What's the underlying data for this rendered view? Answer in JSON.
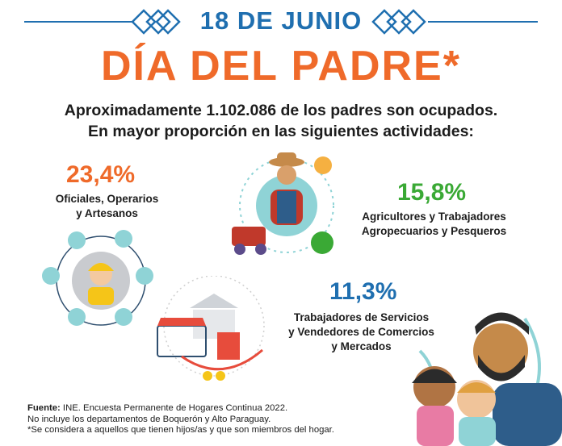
{
  "header": {
    "date": "18 DE JUNIO",
    "title": "DÍA DEL PADRE*",
    "intro_line1": "Aproximadamente 1.102.086 de los padres son ocupados.",
    "intro_line2": "En mayor proporción en las siguientes actividades:"
  },
  "stats": [
    {
      "percent": "23,4%",
      "label_line1": "Oficiales, Operarios",
      "label_line2": "y Artesanos",
      "color": "#ef6a2a"
    },
    {
      "percent": "15,8%",
      "label_line1": "Agricultores  y Trabajadores",
      "label_line2": "Agropecuarios y Pesqueros",
      "color": "#3aa935"
    },
    {
      "percent": "11,3%",
      "label_line1": "Trabajadores de Servicios",
      "label_line2": "y Vendedores de Comercios",
      "label_line3": "y Mercados",
      "color": "#1f6fb0"
    }
  ],
  "footer": {
    "source_label": "Fuente:",
    "source_text": " INE. Encuesta Permanente de Hogares Continua 2022.",
    "note1": "No incluye los departamentos de Boquerón y Alto Paraguay.",
    "note2": "*Se considera a aquellos que tienen hijos/as y que son miembros del hogar."
  },
  "colors": {
    "blue": "#1f6fb0",
    "orange": "#ef6a2a",
    "green": "#3aa935",
    "teal": "#8fd3d6"
  }
}
